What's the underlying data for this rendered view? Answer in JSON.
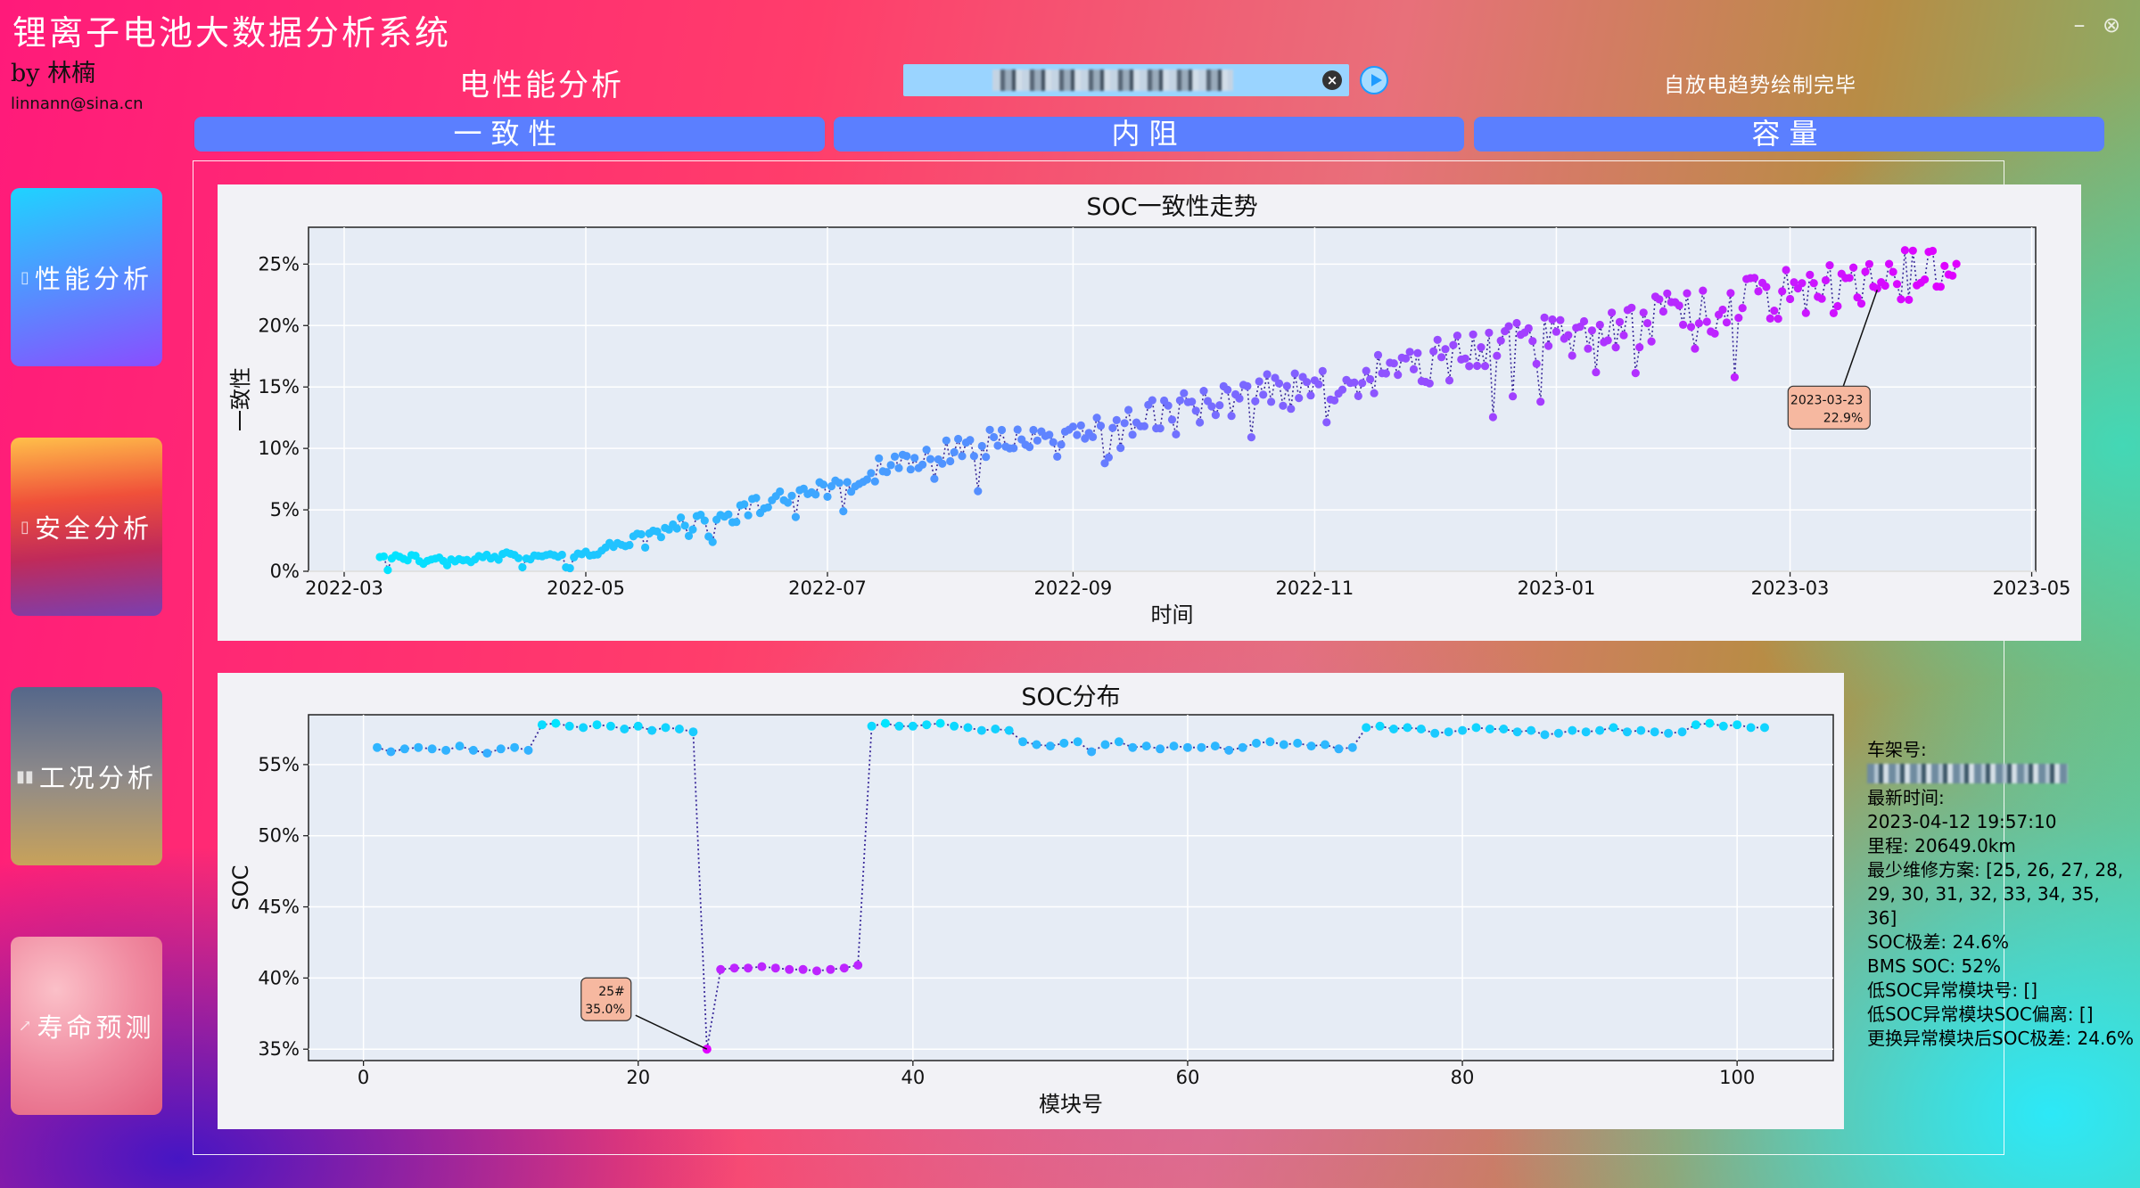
{
  "app": {
    "title": "锂离子电池大数据分析系统",
    "author": "by 林楠",
    "email": "linnann@sina.cn"
  },
  "header": {
    "page_title": "电性能分析",
    "status": "自放电趋势绘制完毕"
  },
  "search": {
    "value": ""
  },
  "tabs": [
    {
      "label": "一致性"
    },
    {
      "label": "内阻"
    },
    {
      "label": "容量"
    }
  ],
  "sidebar": [
    {
      "label": "性能分析",
      "icon": "battery-icon",
      "gradient": [
        "#1fd3ff",
        "#8a4dff"
      ]
    },
    {
      "label": "安全分析",
      "icon": "battery-icon",
      "gradient": [
        "#ffb347",
        "#e8324a",
        "#7a3fb0"
      ]
    },
    {
      "label": "工况分析",
      "icon": "bar-chart-icon",
      "gradient": [
        "#5b6a88",
        "#c5a15a"
      ]
    },
    {
      "label": "寿命预测",
      "icon": "line-chart-icon",
      "gradient": [
        "#f7a0b0",
        "#e75a7a"
      ]
    }
  ],
  "colors": {
    "tab": "#5b7fff",
    "cyan": "#00e5ff",
    "magenta": "#e000ff",
    "annotation": "#f6b8a0"
  },
  "chart_data": [
    {
      "type": "scatter",
      "title": "SOC一致性走势",
      "xlabel": "时间",
      "ylabel": "一致性",
      "x_ticks": [
        "2022-03",
        "2022-05",
        "2022-07",
        "2022-09",
        "2022-11",
        "2023-01",
        "2023-03",
        "2023-05"
      ],
      "xlim": [
        "2022-02-20",
        "2023-05-02"
      ],
      "y_ticks": [
        "0%",
        "5%",
        "10%",
        "15%",
        "20%",
        "25%"
      ],
      "ylim": [
        0,
        28
      ],
      "grid": true,
      "annotation": {
        "date": "2023-03-23",
        "value": "22.9%"
      },
      "series": [
        {
          "color_gradient": [
            "#00e5ff",
            "#e000ff"
          ],
          "points": [
            [
              "2022-03-10",
              0.9
            ],
            [
              "2022-03-14",
              1.1
            ],
            [
              "2022-03-18",
              1.0
            ],
            [
              "2022-03-22",
              0.8
            ],
            [
              "2022-03-26",
              0.8
            ],
            [
              "2022-04-02",
              0.8
            ],
            [
              "2022-04-08",
              1.2
            ],
            [
              "2022-04-14",
              1.2
            ],
            [
              "2022-04-20",
              1.0
            ],
            [
              "2022-04-26",
              1.3
            ],
            [
              "2022-05-02",
              1.6
            ],
            [
              "2022-05-08",
              2.0
            ],
            [
              "2022-05-14",
              2.6
            ],
            [
              "2022-05-20",
              3.2
            ],
            [
              "2022-05-26",
              4.0
            ],
            [
              "2022-06-01",
              4.0
            ],
            [
              "2022-06-08",
              4.6
            ],
            [
              "2022-06-15",
              5.6
            ],
            [
              "2022-06-22",
              6.3
            ],
            [
              "2022-06-30",
              6.5
            ],
            [
              "2022-07-08",
              7.4
            ],
            [
              "2022-07-16",
              8.5
            ],
            [
              "2022-07-24",
              9.0
            ],
            [
              "2022-08-01",
              9.8
            ],
            [
              "2022-08-10",
              10.3
            ],
            [
              "2022-08-20",
              11.0
            ],
            [
              "2022-08-30",
              11.4
            ],
            [
              "2022-09-10",
              12.0
            ],
            [
              "2022-09-20",
              12.6
            ],
            [
              "2022-09-30",
              13.2
            ],
            [
              "2022-10-10",
              13.8
            ],
            [
              "2022-10-20",
              14.5
            ],
            [
              "2022-10-30",
              15.0
            ],
            [
              "2022-11-10",
              15.7
            ],
            [
              "2022-11-20",
              16.3
            ],
            [
              "2022-11-30",
              17.0
            ],
            [
              "2022-12-10",
              17.6
            ],
            [
              "2022-12-20",
              18.2
            ],
            [
              "2022-12-30",
              18.8
            ],
            [
              "2023-01-10",
              19.3
            ],
            [
              "2023-01-20",
              20.0
            ],
            [
              "2023-01-30",
              20.6
            ],
            [
              "2023-02-10",
              21.5
            ],
            [
              "2023-02-20",
              22.0
            ],
            [
              "2023-03-01",
              22.5
            ],
            [
              "2023-03-10",
              23.0
            ],
            [
              "2023-03-23",
              22.9
            ],
            [
              "2023-04-01",
              24.0
            ],
            [
              "2023-04-08",
              24.8
            ],
            [
              "2023-04-12",
              24.6
            ]
          ]
        }
      ]
    },
    {
      "type": "line",
      "title": "SOC分布",
      "xlabel": "模块号",
      "ylabel": "SOC",
      "x_ticks": [
        "0",
        "20",
        "40",
        "60",
        "80",
        "100"
      ],
      "xlim": [
        -4,
        107
      ],
      "y_ticks": [
        "35%",
        "40%",
        "45%",
        "50%",
        "55%"
      ],
      "ylim": [
        34.2,
        58.5
      ],
      "grid": true,
      "annotation": {
        "module": "25#",
        "value": "35.0%"
      },
      "x": [
        1,
        2,
        3,
        4,
        5,
        6,
        7,
        8,
        9,
        10,
        11,
        12,
        13,
        14,
        15,
        16,
        17,
        18,
        19,
        20,
        21,
        22,
        23,
        24,
        25,
        26,
        27,
        28,
        29,
        30,
        31,
        32,
        33,
        34,
        35,
        36,
        37,
        38,
        39,
        40,
        41,
        42,
        43,
        44,
        45,
        46,
        47,
        48,
        49,
        50,
        51,
        52,
        53,
        54,
        55,
        56,
        57,
        58,
        59,
        60,
        61,
        62,
        63,
        64,
        65,
        66,
        67,
        68,
        69,
        70,
        71,
        72,
        73,
        74,
        75,
        76,
        77,
        78,
        79,
        80,
        81,
        82,
        83,
        84,
        85,
        86,
        87,
        88,
        89,
        90,
        91,
        92,
        93,
        94,
        95,
        96,
        97,
        98,
        99,
        100,
        101,
        102
      ],
      "values": [
        56.2,
        55.9,
        56.1,
        56.2,
        56.1,
        56.0,
        56.3,
        56.0,
        55.8,
        56.1,
        56.2,
        56.0,
        57.8,
        57.9,
        57.7,
        57.6,
        57.8,
        57.7,
        57.5,
        57.7,
        57.4,
        57.6,
        57.5,
        57.3,
        35.0,
        40.6,
        40.7,
        40.7,
        40.8,
        40.7,
        40.6,
        40.6,
        40.5,
        40.6,
        40.7,
        40.9,
        57.7,
        57.9,
        57.7,
        57.7,
        57.8,
        57.9,
        57.7,
        57.6,
        57.4,
        57.5,
        57.4,
        56.6,
        56.4,
        56.3,
        56.5,
        56.6,
        55.9,
        56.4,
        56.6,
        56.2,
        56.3,
        56.1,
        56.3,
        56.2,
        56.2,
        56.3,
        56.0,
        56.2,
        56.5,
        56.6,
        56.4,
        56.5,
        56.3,
        56.4,
        56.1,
        56.2,
        57.6,
        57.7,
        57.5,
        57.6,
        57.5,
        57.2,
        57.3,
        57.4,
        57.6,
        57.5,
        57.5,
        57.3,
        57.4,
        57.1,
        57.2,
        57.4,
        57.3,
        57.4,
        57.6,
        57.3,
        57.4,
        57.3,
        57.2,
        57.3,
        57.8,
        57.9,
        57.7,
        57.8,
        57.6,
        57.6
      ]
    }
  ],
  "info_panel": {
    "lines": [
      "车架号:",
      "最新时间:",
      "2023-04-12 19:57:10",
      "里程: 20649.0km",
      "最少维修方案: [25, 26, 27, 28, 29, 30, 31, 32, 33, 34, 35, 36]",
      "SOC极差: 24.6%",
      "BMS SOC: 52%",
      "低SOC异常模块号: []",
      "低SOC异常模块SOC偏离: []",
      "更换异常模块后SOC极差: 24.6%"
    ]
  }
}
